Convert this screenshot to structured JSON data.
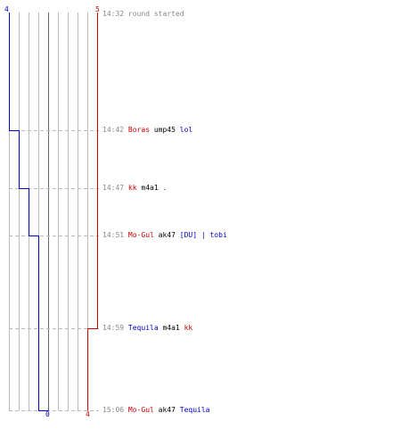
{
  "top_scores": {
    "blue": "4",
    "red": "5"
  },
  "bottom_scores": {
    "blue": "0",
    "red": "4"
  },
  "events": [
    {
      "time": "14:32",
      "kind": "note",
      "text": "round started"
    },
    {
      "time": "14:42",
      "kind": "kill",
      "killer": "Boras",
      "killer_team": "red",
      "weapon": "ump45",
      "victim": "lol",
      "victim_team": "blue"
    },
    {
      "time": "14:47",
      "kind": "kill",
      "killer": "kk",
      "killer_team": "red",
      "weapon": "m4a1",
      "victim": ".",
      "victim_team": "blue"
    },
    {
      "time": "14:51",
      "kind": "kill",
      "killer": "Mo-Gul",
      "killer_team": "red",
      "weapon": "ak47",
      "victim": "[DU] | tobi",
      "victim_team": "blue"
    },
    {
      "time": "14:59",
      "kind": "kill",
      "killer": "Tequila",
      "killer_team": "blue",
      "weapon": "m4a1",
      "victim": "kk",
      "victim_team": "red"
    },
    {
      "time": "15:06",
      "kind": "kill",
      "killer": "Mo-Gul",
      "killer_team": "red",
      "weapon": "ak47",
      "victim": "Tequila",
      "victim_team": "blue"
    }
  ],
  "colors": {
    "blue": "#0000cc",
    "red": "#cc0000",
    "grid": "#bbbbbb",
    "dash": "#bbbbbb",
    "zero": "#666666",
    "time": "#888888"
  }
}
